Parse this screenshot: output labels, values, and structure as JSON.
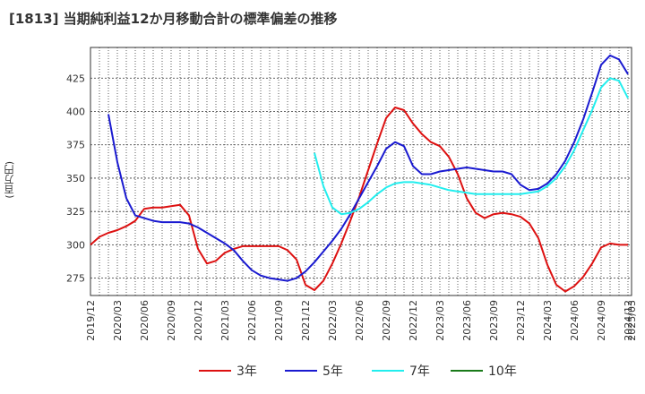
{
  "header": {
    "title": "[1813]  当期純利益12か月移動合計の標準偏差の推移",
    "unit": "(百万円)"
  },
  "chart_data": {
    "type": "line",
    "title": "[1813]  当期純利益12か月移動合計の標準偏差の推移",
    "xlabel": "",
    "ylabel": "(百万円)",
    "ylim": [
      262,
      448
    ],
    "y_ticks": [
      275,
      300,
      325,
      350,
      375,
      400,
      425
    ],
    "x_ticks": [
      "2019/12",
      "2020/03",
      "2020/06",
      "2020/09",
      "2020/12",
      "2021/03",
      "2021/06",
      "2021/09",
      "2021/12",
      "2022/03",
      "2022/06",
      "2022/09",
      "2022/12",
      "2023/03",
      "2023/06",
      "2023/09",
      "2023/12",
      "2024/03",
      "2024/06",
      "2024/09",
      "2024/12",
      "2025/03",
      "2025/03"
    ],
    "grid": true,
    "legend_position": "bottom",
    "series": [
      {
        "name": "3年",
        "color": "#dd1111",
        "points": [
          [
            "2019/12",
            300
          ],
          [
            "2020/01",
            306
          ],
          [
            "2020/02",
            309
          ],
          [
            "2020/03",
            311
          ],
          [
            "2020/04",
            314
          ],
          [
            "2020/05",
            318
          ],
          [
            "2020/06",
            327
          ],
          [
            "2020/07",
            328
          ],
          [
            "2020/08",
            328
          ],
          [
            "2020/09",
            329
          ],
          [
            "2020/10",
            330
          ],
          [
            "2020/11",
            322
          ],
          [
            "2020/12",
            297
          ],
          [
            "2021/01",
            286
          ],
          [
            "2021/02",
            288
          ],
          [
            "2021/03",
            294
          ],
          [
            "2021/04",
            297
          ],
          [
            "2021/05",
            299
          ],
          [
            "2021/06",
            299
          ],
          [
            "2021/07",
            299
          ],
          [
            "2021/08",
            299
          ],
          [
            "2021/09",
            299
          ],
          [
            "2021/10",
            296
          ],
          [
            "2021/11",
            289
          ],
          [
            "2021/12",
            270
          ],
          [
            "2022/01",
            266
          ],
          [
            "2022/02",
            273
          ],
          [
            "2022/03",
            286
          ],
          [
            "2022/04",
            301
          ],
          [
            "2022/05",
            318
          ],
          [
            "2022/06",
            336
          ],
          [
            "2022/07",
            356
          ],
          [
            "2022/08",
            376
          ],
          [
            "2022/09",
            395
          ],
          [
            "2022/10",
            403
          ],
          [
            "2022/11",
            401
          ],
          [
            "2022/12",
            391
          ],
          [
            "2023/01",
            383
          ],
          [
            "2023/02",
            377
          ],
          [
            "2023/03",
            374
          ],
          [
            "2023/04",
            366
          ],
          [
            "2023/05",
            353
          ],
          [
            "2023/06",
            335
          ],
          [
            "2023/07",
            324
          ],
          [
            "2023/08",
            320
          ],
          [
            "2023/09",
            323
          ],
          [
            "2023/10",
            324
          ],
          [
            "2023/11",
            323
          ],
          [
            "2023/12",
            321
          ],
          [
            "2024/01",
            316
          ],
          [
            "2024/02",
            305
          ],
          [
            "2024/03",
            285
          ],
          [
            "2024/04",
            270
          ],
          [
            "2024/05",
            265
          ],
          [
            "2024/06",
            269
          ],
          [
            "2024/07",
            276
          ],
          [
            "2024/08",
            286
          ],
          [
            "2024/09",
            298
          ],
          [
            "2024/10",
            301
          ],
          [
            "2024/11",
            300
          ],
          [
            "2024/12",
            300
          ]
        ]
      },
      {
        "name": "5年",
        "color": "#1a1ad0",
        "points": [
          [
            "2020/02",
            398
          ],
          [
            "2020/03",
            362
          ],
          [
            "2020/04",
            335
          ],
          [
            "2020/05",
            322
          ],
          [
            "2020/06",
            320
          ],
          [
            "2020/07",
            318
          ],
          [
            "2020/08",
            317
          ],
          [
            "2020/09",
            317
          ],
          [
            "2020/10",
            317
          ],
          [
            "2020/11",
            316
          ],
          [
            "2020/12",
            313
          ],
          [
            "2021/01",
            309
          ],
          [
            "2021/02",
            305
          ],
          [
            "2021/03",
            301
          ],
          [
            "2021/04",
            296
          ],
          [
            "2021/05",
            288
          ],
          [
            "2021/06",
            281
          ],
          [
            "2021/07",
            277
          ],
          [
            "2021/08",
            275
          ],
          [
            "2021/09",
            274
          ],
          [
            "2021/10",
            273
          ],
          [
            "2021/11",
            275
          ],
          [
            "2021/12",
            280
          ],
          [
            "2022/01",
            287
          ],
          [
            "2022/02",
            295
          ],
          [
            "2022/03",
            303
          ],
          [
            "2022/04",
            312
          ],
          [
            "2022/05",
            323
          ],
          [
            "2022/06",
            335
          ],
          [
            "2022/07",
            347
          ],
          [
            "2022/08",
            359
          ],
          [
            "2022/09",
            372
          ],
          [
            "2022/10",
            377
          ],
          [
            "2022/11",
            374
          ],
          [
            "2022/12",
            359
          ],
          [
            "2023/01",
            353
          ],
          [
            "2023/02",
            353
          ],
          [
            "2023/03",
            355
          ],
          [
            "2023/04",
            356
          ],
          [
            "2023/05",
            357
          ],
          [
            "2023/06",
            358
          ],
          [
            "2023/07",
            357
          ],
          [
            "2023/08",
            356
          ],
          [
            "2023/09",
            355
          ],
          [
            "2023/10",
            355
          ],
          [
            "2023/11",
            353
          ],
          [
            "2023/12",
            345
          ],
          [
            "2024/01",
            341
          ],
          [
            "2024/02",
            342
          ],
          [
            "2024/03",
            346
          ],
          [
            "2024/04",
            353
          ],
          [
            "2024/05",
            363
          ],
          [
            "2024/06",
            377
          ],
          [
            "2024/07",
            394
          ],
          [
            "2024/08",
            414
          ],
          [
            "2024/09",
            435
          ],
          [
            "2024/10",
            442
          ],
          [
            "2024/11",
            439
          ],
          [
            "2024/12",
            428
          ]
        ]
      },
      {
        "name": "7年",
        "color": "#22eeee",
        "points": [
          [
            "2022/01",
            369
          ],
          [
            "2022/02",
            344
          ],
          [
            "2022/03",
            328
          ],
          [
            "2022/04",
            323
          ],
          [
            "2022/05",
            324
          ],
          [
            "2022/06",
            327
          ],
          [
            "2022/07",
            332
          ],
          [
            "2022/08",
            338
          ],
          [
            "2022/09",
            343
          ],
          [
            "2022/10",
            346
          ],
          [
            "2022/11",
            347
          ],
          [
            "2022/12",
            347
          ],
          [
            "2023/01",
            346
          ],
          [
            "2023/02",
            345
          ],
          [
            "2023/03",
            343
          ],
          [
            "2023/04",
            341
          ],
          [
            "2023/05",
            340
          ],
          [
            "2023/06",
            339
          ],
          [
            "2023/07",
            338
          ],
          [
            "2023/08",
            338
          ],
          [
            "2023/09",
            338
          ],
          [
            "2023/10",
            338
          ],
          [
            "2023/11",
            338
          ],
          [
            "2023/12",
            338
          ],
          [
            "2024/01",
            339
          ],
          [
            "2024/02",
            340
          ],
          [
            "2024/03",
            344
          ],
          [
            "2024/04",
            350
          ],
          [
            "2024/05",
            359
          ],
          [
            "2024/06",
            371
          ],
          [
            "2024/07",
            386
          ],
          [
            "2024/08",
            401
          ],
          [
            "2024/09",
            418
          ],
          [
            "2024/10",
            425
          ],
          [
            "2024/11",
            423
          ],
          [
            "2024/12",
            410
          ]
        ]
      },
      {
        "name": "10年",
        "color": "#1a7a1a",
        "points": []
      }
    ]
  }
}
